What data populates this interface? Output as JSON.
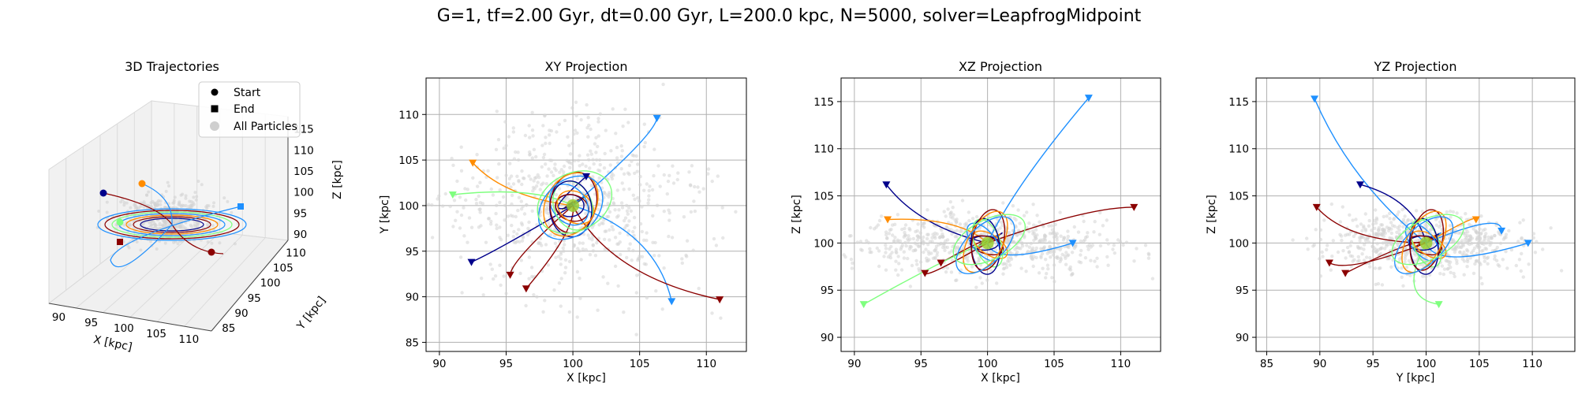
{
  "figure": {
    "title": "G=1, tf=2.00 Gyr, dt=0.00 Gyr, L=200.0 kpc, N=5000, solver=LeapfrogMidpoint"
  },
  "chart_data": [
    {
      "type": "scatter",
      "title": "3D Trajectories",
      "xlabel": "X [kpc]",
      "ylabel": "Y [kpc]",
      "zlabel": "Z [kpc]",
      "xticks": [
        "90",
        "95",
        "100",
        "105",
        "110"
      ],
      "yticks": [
        "85",
        "90",
        "95",
        "100",
        "105",
        "110"
      ],
      "zticks": [
        "90",
        "95",
        "100",
        "105",
        "110",
        "115"
      ],
      "legend": [
        "Start",
        "End",
        "All Particles"
      ],
      "legend_position": "top-right",
      "grid": true
    },
    {
      "type": "line",
      "title": "XY Projection",
      "xlabel": "X [kpc]",
      "ylabel": "Y [kpc]",
      "xlim": [
        89,
        113
      ],
      "ylim": [
        84,
        114
      ],
      "xticks": [
        90,
        95,
        100,
        105,
        110
      ],
      "yticks": [
        85,
        90,
        95,
        100,
        105,
        110
      ],
      "grid": true,
      "start_points": [
        {
          "color": "#ff8c00",
          "x": 92.5,
          "y": 104.7
        },
        {
          "color": "#7fff7f",
          "x": 91.0,
          "y": 101.2
        },
        {
          "color": "#00008b",
          "x": 92.4,
          "y": 93.8
        },
        {
          "color": "#8b0000",
          "x": 96.5,
          "y": 90.9
        },
        {
          "color": "#8b0000",
          "x": 95.3,
          "y": 92.4
        },
        {
          "color": "#1e90ff",
          "x": 107.4,
          "y": 89.5
        },
        {
          "color": "#8b0000",
          "x": 111.0,
          "y": 89.7
        },
        {
          "color": "#1e90ff",
          "x": 106.3,
          "y": 109.6
        },
        {
          "color": "#00008b",
          "x": 101.0,
          "y": 103.2
        }
      ]
    },
    {
      "type": "line",
      "title": "XZ Projection",
      "xlabel": "X [kpc]",
      "ylabel": "Z [kpc]",
      "xlim": [
        89,
        113
      ],
      "ylim": [
        88.5,
        117.5
      ],
      "xticks": [
        90,
        95,
        100,
        105,
        110
      ],
      "yticks": [
        90,
        95,
        100,
        105,
        110,
        115
      ],
      "grid": true,
      "start_points": [
        {
          "color": "#00008b",
          "x": 92.4,
          "y": 106.2
        },
        {
          "color": "#ff8c00",
          "x": 92.5,
          "y": 102.5
        },
        {
          "color": "#1e90ff",
          "x": 107.6,
          "y": 115.4
        },
        {
          "color": "#8b0000",
          "x": 111.0,
          "y": 103.8
        },
        {
          "color": "#8b0000",
          "x": 95.3,
          "y": 96.8
        },
        {
          "color": "#8b0000",
          "x": 96.5,
          "y": 97.9
        },
        {
          "color": "#1e90ff",
          "x": 106.4,
          "y": 100.0
        },
        {
          "color": "#7fff7f",
          "x": 90.7,
          "y": 93.5
        }
      ]
    },
    {
      "type": "line",
      "title": "YZ Projection",
      "xlabel": "Y [kpc]",
      "ylabel": "Z [kpc]",
      "xlim": [
        84,
        114
      ],
      "ylim": [
        88.5,
        117.5
      ],
      "xticks": [
        85,
        90,
        95,
        100,
        105,
        110
      ],
      "yticks": [
        90,
        95,
        100,
        105,
        110,
        115
      ],
      "grid": true,
      "start_points": [
        {
          "color": "#1e90ff",
          "x": 89.5,
          "y": 115.3
        },
        {
          "color": "#00008b",
          "x": 93.8,
          "y": 106.2
        },
        {
          "color": "#8b0000",
          "x": 89.7,
          "y": 103.8
        },
        {
          "color": "#ff8c00",
          "x": 104.7,
          "y": 102.5
        },
        {
          "color": "#8b0000",
          "x": 90.9,
          "y": 97.9
        },
        {
          "color": "#8b0000",
          "x": 92.4,
          "y": 96.8
        },
        {
          "color": "#7fff7f",
          "x": 101.2,
          "y": 93.5
        },
        {
          "color": "#1e90ff",
          "x": 107.1,
          "y": 101.3
        },
        {
          "color": "#1e90ff",
          "x": 109.6,
          "y": 100.0
        }
      ]
    }
  ]
}
